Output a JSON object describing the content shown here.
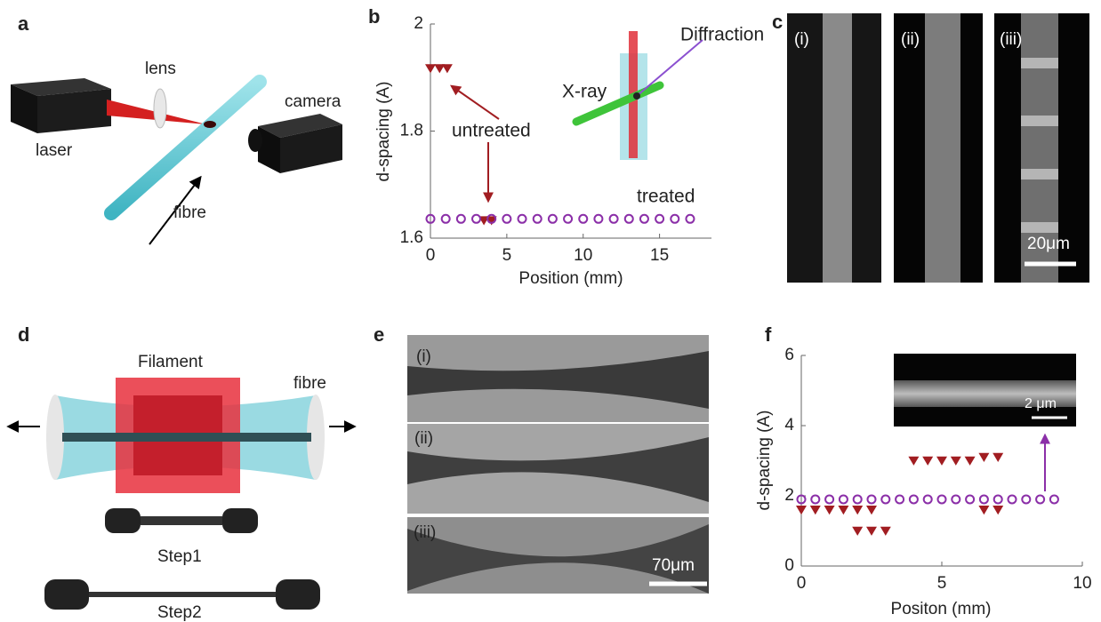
{
  "panels": {
    "a": {
      "label": "a",
      "lens": "lens",
      "laser": "laser",
      "camera": "camera",
      "fibre": "fibre"
    },
    "b": {
      "label": "b"
    },
    "c": {
      "label": "c",
      "sub": [
        "(i)",
        "(ii)",
        "(iii)"
      ],
      "scale": "20μm"
    },
    "d": {
      "label": "d",
      "filament": "Filament",
      "fibre": "fibre",
      "step1": "Step1",
      "step2": "Step2"
    },
    "e": {
      "label": "e",
      "sub": [
        "(i)",
        "(ii)",
        "(iii)"
      ],
      "scale": "70μm"
    },
    "f": {
      "label": "f",
      "scale": "2 μm"
    }
  },
  "chart_data": [
    {
      "type": "scatter",
      "xlabel": "Position (mm)",
      "ylabel": "d-spacing (A)",
      "annotations": [
        "Diffraction",
        "X-ray",
        "untreated",
        "treated"
      ],
      "xlim": [
        0,
        18.4
      ],
      "ylim": [
        1.6,
        2.0
      ],
      "xticks": [
        0,
        5,
        10,
        15
      ],
      "yticks": [
        1.6,
        1.8,
        2
      ],
      "series": [
        {
          "name": "untreated",
          "color": "#a11d21",
          "marker": "triangle-down",
          "x": [
            0,
            0.6,
            1.1,
            3.5,
            4.0
          ],
          "values": [
            1.917,
            1.917,
            1.917,
            1.633,
            1.633
          ]
        },
        {
          "name": "treated",
          "color": "#8b2fa8",
          "marker": "circle-open",
          "x": [
            0,
            1,
            2,
            3,
            4,
            5,
            6,
            7,
            8,
            9,
            10,
            11,
            12,
            13,
            14,
            15,
            16,
            17
          ],
          "values": [
            1.636,
            1.636,
            1.636,
            1.636,
            1.636,
            1.636,
            1.636,
            1.636,
            1.636,
            1.636,
            1.636,
            1.636,
            1.636,
            1.636,
            1.636,
            1.636,
            1.636,
            1.636
          ]
        }
      ]
    },
    {
      "type": "scatter",
      "xlabel": "Positon (mm)",
      "ylabel": "d-spacing (A)",
      "xlim": [
        0,
        10
      ],
      "ylim": [
        0,
        6
      ],
      "xticks": [
        0,
        5,
        10
      ],
      "yticks": [
        0,
        2,
        4,
        6
      ],
      "series": [
        {
          "color": "#a11d21",
          "marker": "triangle-down",
          "x": [
            0,
            0.5,
            1,
            1.5,
            2,
            2.5,
            6.5,
            7,
            2,
            2.5,
            3,
            4,
            4.5,
            5,
            5.5,
            6,
            6.5,
            7
          ],
          "values": [
            1.6,
            1.6,
            1.6,
            1.6,
            1.6,
            1.6,
            1.6,
            1.6,
            1.0,
            1.0,
            1.0,
            3.0,
            3.0,
            3.0,
            3.0,
            3.0,
            3.1,
            3.1
          ]
        },
        {
          "color": "#8b2fa8",
          "marker": "circle-open",
          "x": [
            0,
            0.5,
            1,
            1.5,
            2,
            2.5,
            3,
            3.5,
            4,
            4.5,
            5,
            5.5,
            6,
            6.5,
            7,
            7.5,
            8,
            8.5,
            9
          ],
          "values": [
            1.9,
            1.9,
            1.9,
            1.9,
            1.9,
            1.9,
            1.9,
            1.9,
            1.9,
            1.9,
            1.9,
            1.9,
            1.9,
            1.9,
            1.9,
            1.9,
            1.9,
            1.9,
            1.9
          ]
        }
      ]
    }
  ]
}
